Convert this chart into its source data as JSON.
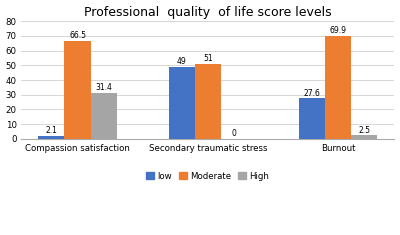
{
  "title": "Professional  quality  of life score levels",
  "categories": [
    "Compassion satisfaction",
    "Secondary traumatic stress",
    "Burnout"
  ],
  "series": {
    "low": [
      2.1,
      49,
      27.6
    ],
    "Moderate": [
      66.5,
      51,
      69.9
    ],
    "High": [
      31.4,
      0,
      2.5
    ]
  },
  "colors": {
    "low": "#4472C4",
    "Moderate": "#ED7D31",
    "High": "#A5A5A5"
  },
  "ylim": [
    0,
    80
  ],
  "yticks": [
    0,
    10,
    20,
    30,
    40,
    50,
    60,
    70,
    80
  ],
  "bar_width": 0.2,
  "legend_labels": [
    "low",
    "Moderate",
    "High"
  ],
  "background_color": "#ffffff",
  "label_fontsize": 5.5,
  "title_fontsize": 9,
  "tick_fontsize": 6.2,
  "legend_fontsize": 6.2
}
